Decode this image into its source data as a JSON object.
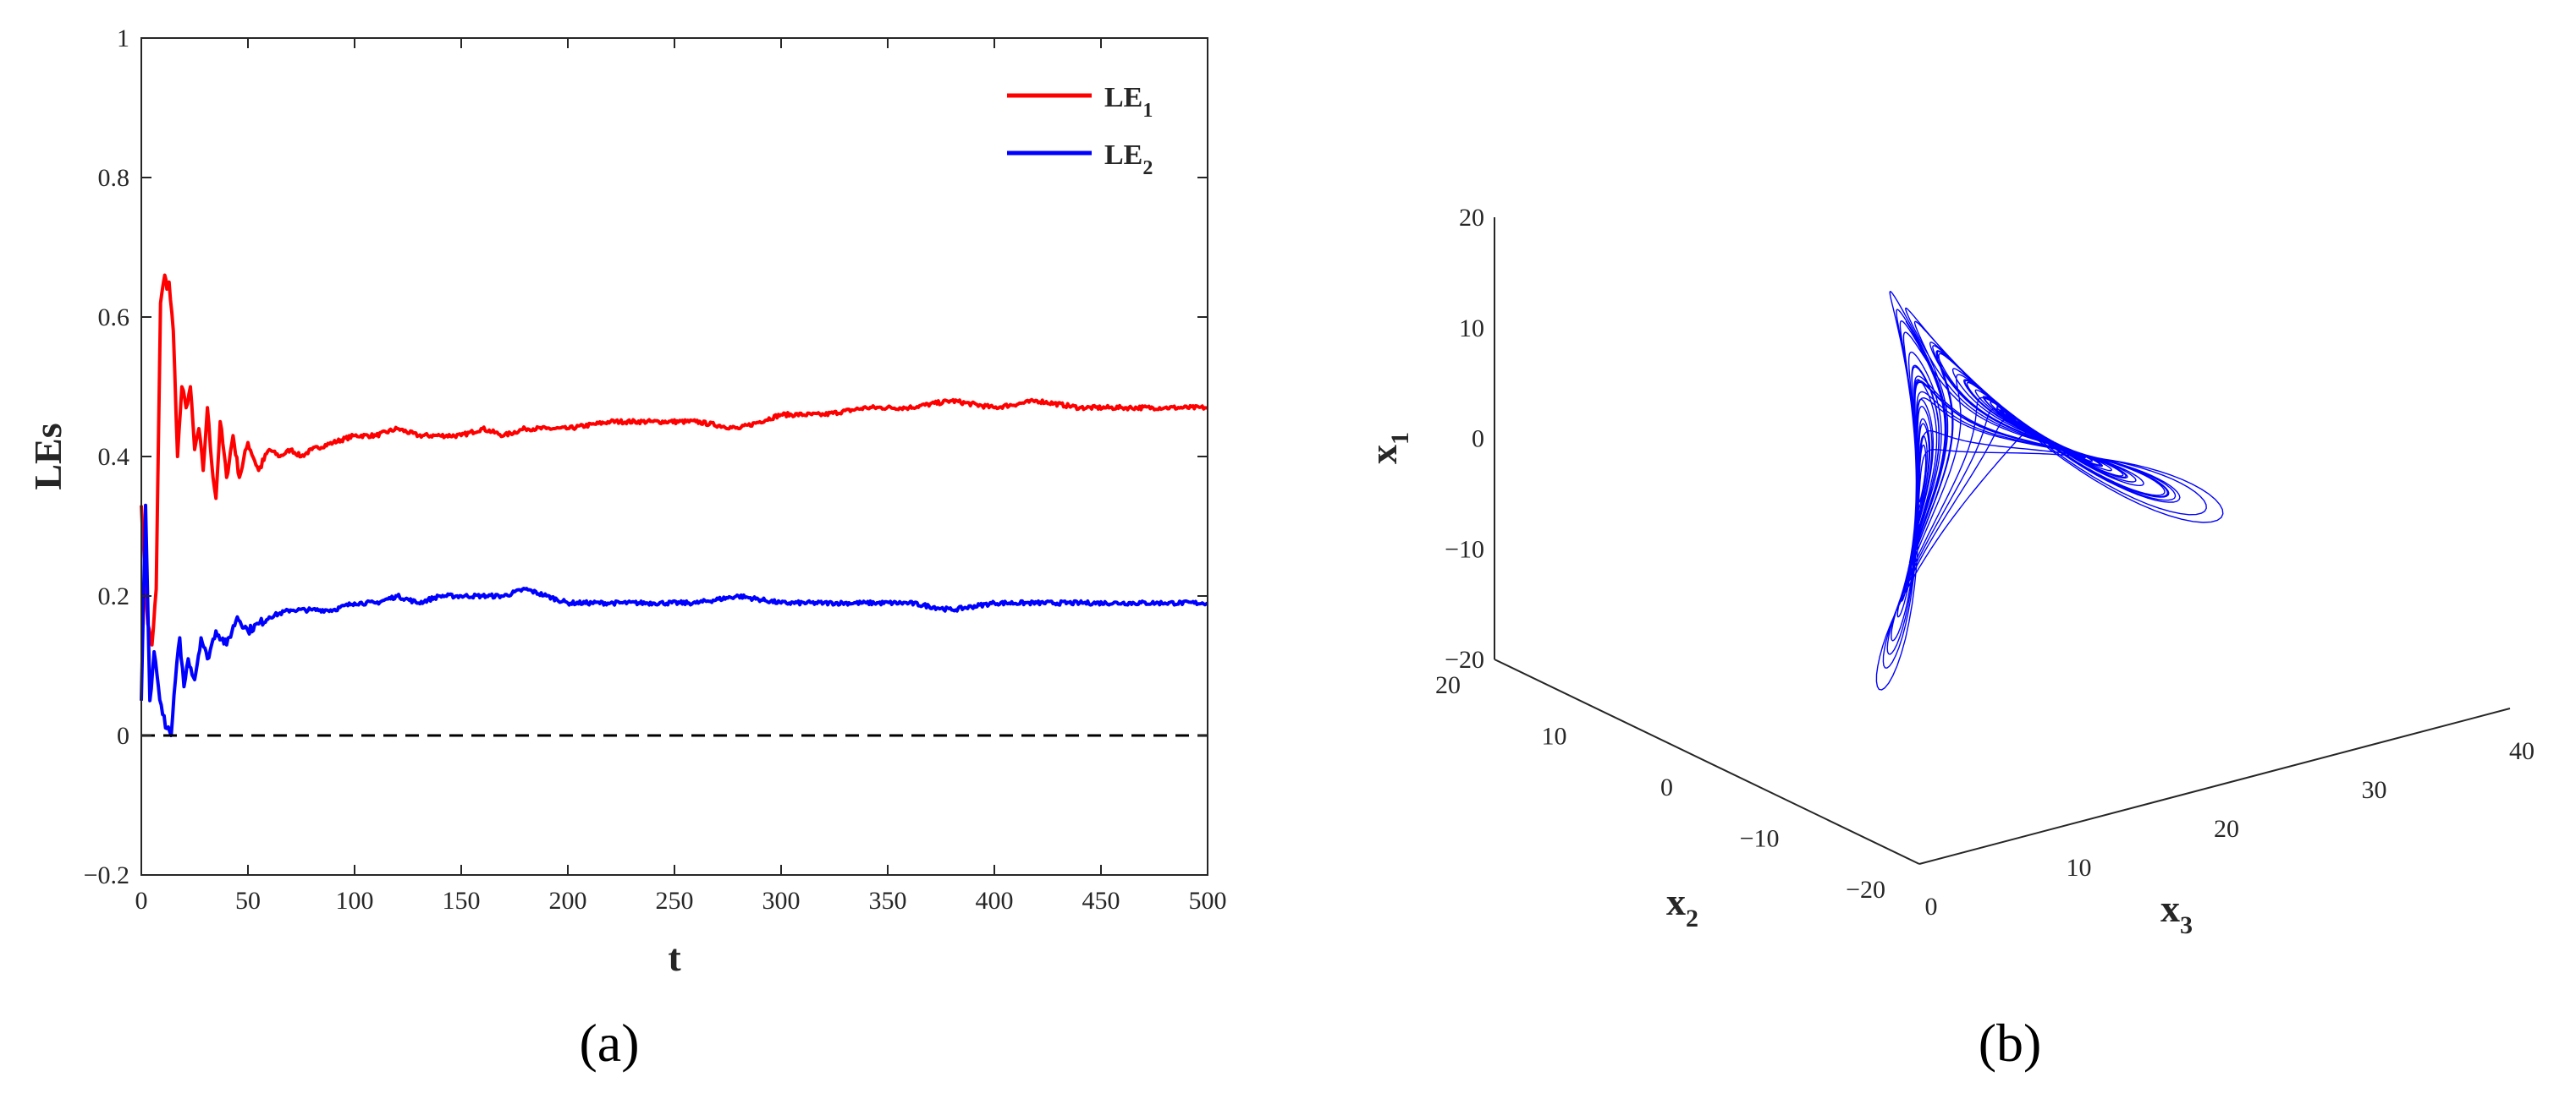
{
  "chart_data": [
    {
      "type": "line",
      "panel_label": "(a)",
      "xlabel": "t",
      "ylabel": "LEs",
      "xlim": [
        0,
        500
      ],
      "ylim": [
        -0.2,
        1
      ],
      "xticks": [
        "0",
        "50",
        "100",
        "150",
        "200",
        "250",
        "300",
        "350",
        "400",
        "450",
        "500"
      ],
      "yticks": [
        "−0.2",
        "0",
        "0.2",
        "0.4",
        "0.6",
        "0.8",
        "1"
      ],
      "reference_line": {
        "y": 0,
        "style": "dashed",
        "color": "#000000"
      },
      "legend_position": "top-right",
      "series": [
        {
          "name": "LE",
          "subscript": "1",
          "color": "#ff0000",
          "x": [
            0,
            3,
            5,
            7,
            9,
            11,
            12,
            13,
            15,
            17,
            19,
            21,
            23,
            25,
            27,
            29,
            31,
            33,
            35,
            37,
            40,
            43,
            46,
            50,
            55,
            60,
            65,
            70,
            75,
            80,
            90,
            100,
            110,
            120,
            130,
            140,
            150,
            160,
            170,
            180,
            190,
            200,
            220,
            240,
            260,
            280,
            300,
            320,
            340,
            360,
            380,
            400,
            420,
            440,
            460,
            480,
            500
          ],
          "y": [
            0.33,
            0.16,
            0.13,
            0.21,
            0.62,
            0.66,
            0.64,
            0.65,
            0.58,
            0.4,
            0.5,
            0.47,
            0.5,
            0.41,
            0.44,
            0.38,
            0.47,
            0.39,
            0.34,
            0.45,
            0.37,
            0.43,
            0.37,
            0.42,
            0.38,
            0.41,
            0.4,
            0.41,
            0.4,
            0.41,
            0.42,
            0.43,
            0.43,
            0.44,
            0.43,
            0.43,
            0.43,
            0.44,
            0.43,
            0.44,
            0.44,
            0.44,
            0.45,
            0.45,
            0.45,
            0.44,
            0.46,
            0.46,
            0.47,
            0.47,
            0.48,
            0.47,
            0.48,
            0.47,
            0.47,
            0.47,
            0.47
          ]
        },
        {
          "name": "LE",
          "subscript": "2",
          "color": "#0000ff",
          "x": [
            0,
            2,
            4,
            6,
            8,
            10,
            12,
            14,
            16,
            18,
            20,
            22,
            25,
            28,
            31,
            35,
            40,
            45,
            50,
            55,
            60,
            70,
            80,
            90,
            100,
            110,
            120,
            130,
            140,
            150,
            160,
            170,
            180,
            190,
            200,
            220,
            240,
            260,
            280,
            300,
            320,
            340,
            360,
            380,
            400,
            420,
            440,
            460,
            480,
            500
          ],
          "y": [
            0.05,
            0.33,
            0.05,
            0.12,
            0.07,
            0.03,
            0.01,
            0.0,
            0.08,
            0.14,
            0.07,
            0.11,
            0.08,
            0.14,
            0.11,
            0.15,
            0.13,
            0.17,
            0.15,
            0.16,
            0.17,
            0.18,
            0.18,
            0.18,
            0.19,
            0.19,
            0.2,
            0.19,
            0.2,
            0.2,
            0.2,
            0.2,
            0.21,
            0.2,
            0.19,
            0.19,
            0.19,
            0.19,
            0.2,
            0.19,
            0.19,
            0.19,
            0.19,
            0.18,
            0.19,
            0.19,
            0.19,
            0.19,
            0.19,
            0.19
          ]
        }
      ]
    },
    {
      "type": "line3d",
      "panel_label": "(b)",
      "xlabel": "x",
      "xlabel_subscript": "2",
      "ylabel": "x",
      "ylabel_subscript": "3",
      "zlabel": "x",
      "zlabel_subscript": "1",
      "x2_ticks": [
        "−20",
        "−10",
        "0",
        "10",
        "20"
      ],
      "x3_ticks": [
        "0",
        "10",
        "20",
        "30",
        "40"
      ],
      "x1_ticks": [
        "−20",
        "−10",
        "0",
        "10",
        "20"
      ],
      "x2_range": [
        -20,
        20
      ],
      "x3_range": [
        0,
        40
      ],
      "x1_range": [
        -20,
        20
      ],
      "grid": false,
      "trajectory": {
        "color": "#0000ff",
        "system": "Lorenz-type chaotic attractor",
        "samples_visible": 6000
      }
    }
  ]
}
